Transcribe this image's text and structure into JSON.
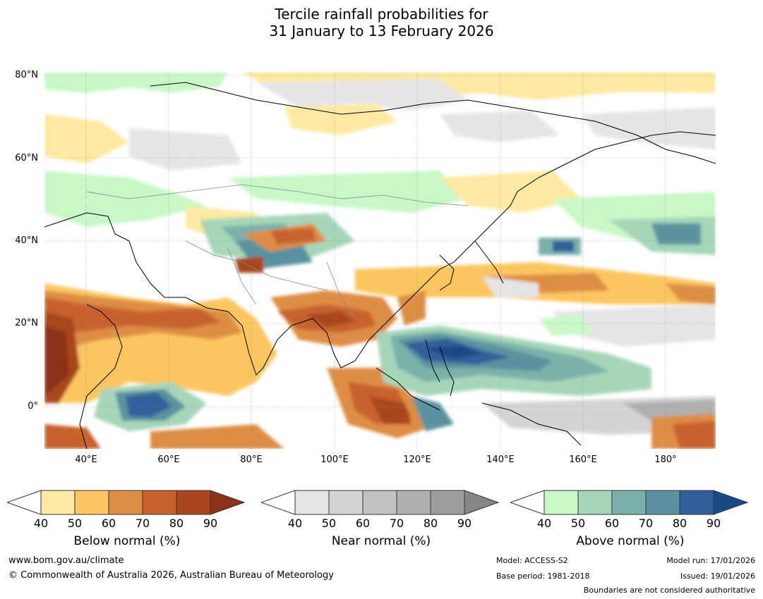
{
  "title_line1": "Tercile rainfall probabilities for",
  "title_line2": "31 January to 13 February 2026",
  "lat_labels": [
    "80°N",
    "60°N",
    "40°N",
    "20°N",
    "0°"
  ],
  "lon_labels": [
    "40°E",
    "60°E",
    "80°E",
    "100°E",
    "120°E",
    "140°E",
    "160°E",
    "180°"
  ],
  "legends": [
    {
      "title": "Below normal (%)",
      "ticks": [
        "40",
        "50",
        "60",
        "70",
        "80",
        "90"
      ],
      "colors": [
        "#fde9a1",
        "#fbc661",
        "#de8d44",
        "#c7622f",
        "#a8461f",
        "#8b3218"
      ]
    },
    {
      "title": "Near normal (%)",
      "ticks": [
        "40",
        "50",
        "60",
        "70",
        "80",
        "90"
      ],
      "colors": [
        "#e5e5e5",
        "#d4d4d4",
        "#c2c2c2",
        "#b0b0b0",
        "#9e9e9e",
        "#868686"
      ]
    },
    {
      "title": "Above normal (%)",
      "ticks": [
        "40",
        "50",
        "60",
        "70",
        "80",
        "90"
      ],
      "colors": [
        "#c8f8c8",
        "#a6d6b9",
        "#7bb1aa",
        "#5a939f",
        "#30609a",
        "#1a4a86"
      ]
    }
  ],
  "footer": {
    "website": "www.bom.gov.au/climate",
    "copyright": "© Commonwealth of Australia 2026, Australian Bureau of Meteorology",
    "model": "Model: ACCESS-S2",
    "base_period": "Base period: 1981-2018",
    "model_run": "Model run: 17/01/2026",
    "issued": "Issued: 19/01/2026",
    "disclaimer": "Boundaries are not considered authoritative"
  }
}
